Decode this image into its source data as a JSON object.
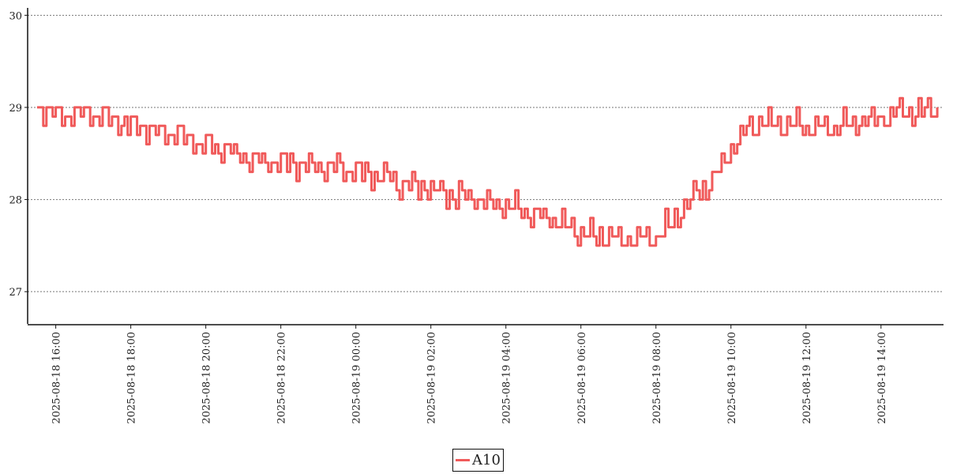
{
  "chart_data": {
    "type": "line",
    "title": "",
    "xlabel": "",
    "ylabel": "",
    "x_range": [
      "2025-08-18 15:15",
      "2025-08-19 15:40"
    ],
    "ylim": [
      26.65,
      30.08
    ],
    "y_ticks": [
      "27",
      "28",
      "29",
      "30"
    ],
    "x_ticks": [
      "2025-08-18 16:00",
      "2025-08-18 18:00",
      "2025-08-18 20:00",
      "2025-08-18 22:00",
      "2025-08-19 00:00",
      "2025-08-19 02:00",
      "2025-08-19 04:00",
      "2025-08-19 06:00",
      "2025-08-19 08:00",
      "2025-08-19 10:00",
      "2025-08-19 12:00",
      "2025-08-19 14:00"
    ],
    "grid": "horizontal dotted",
    "legend_position": "bottom-center",
    "line_color": "#f05a5a",
    "series": [
      {
        "name": "A10",
        "x": [
          "2025-08-18 15:30",
          "2025-08-18 16:00",
          "2025-08-18 17:00",
          "2025-08-18 18:00",
          "2025-08-18 19:00",
          "2025-08-18 20:00",
          "2025-08-18 21:00",
          "2025-08-18 22:00",
          "2025-08-18 23:00",
          "2025-08-19 00:00",
          "2025-08-19 01:00",
          "2025-08-19 02:00",
          "2025-08-19 03:00",
          "2025-08-19 04:00",
          "2025-08-19 05:00",
          "2025-08-19 06:00",
          "2025-08-19 06:30",
          "2025-08-19 07:00",
          "2025-08-19 07:30",
          "2025-08-19 08:00",
          "2025-08-19 08:30",
          "2025-08-19 09:00",
          "2025-08-19 09:30",
          "2025-08-19 10:00",
          "2025-08-19 10:30",
          "2025-08-19 11:00",
          "2025-08-19 12:00",
          "2025-08-19 13:00",
          "2025-08-19 14:00",
          "2025-08-19 15:00",
          "2025-08-19 15:30"
        ],
        "values": [
          29.0,
          28.95,
          28.9,
          28.8,
          28.7,
          28.6,
          28.45,
          28.4,
          28.35,
          28.3,
          28.2,
          28.1,
          28.0,
          27.95,
          27.8,
          27.65,
          27.6,
          27.55,
          27.55,
          27.6,
          27.8,
          28.05,
          28.2,
          28.6,
          28.8,
          28.85,
          28.8,
          28.8,
          28.9,
          28.95,
          29.0
        ]
      }
    ],
    "noise_amplitude": 0.1
  }
}
